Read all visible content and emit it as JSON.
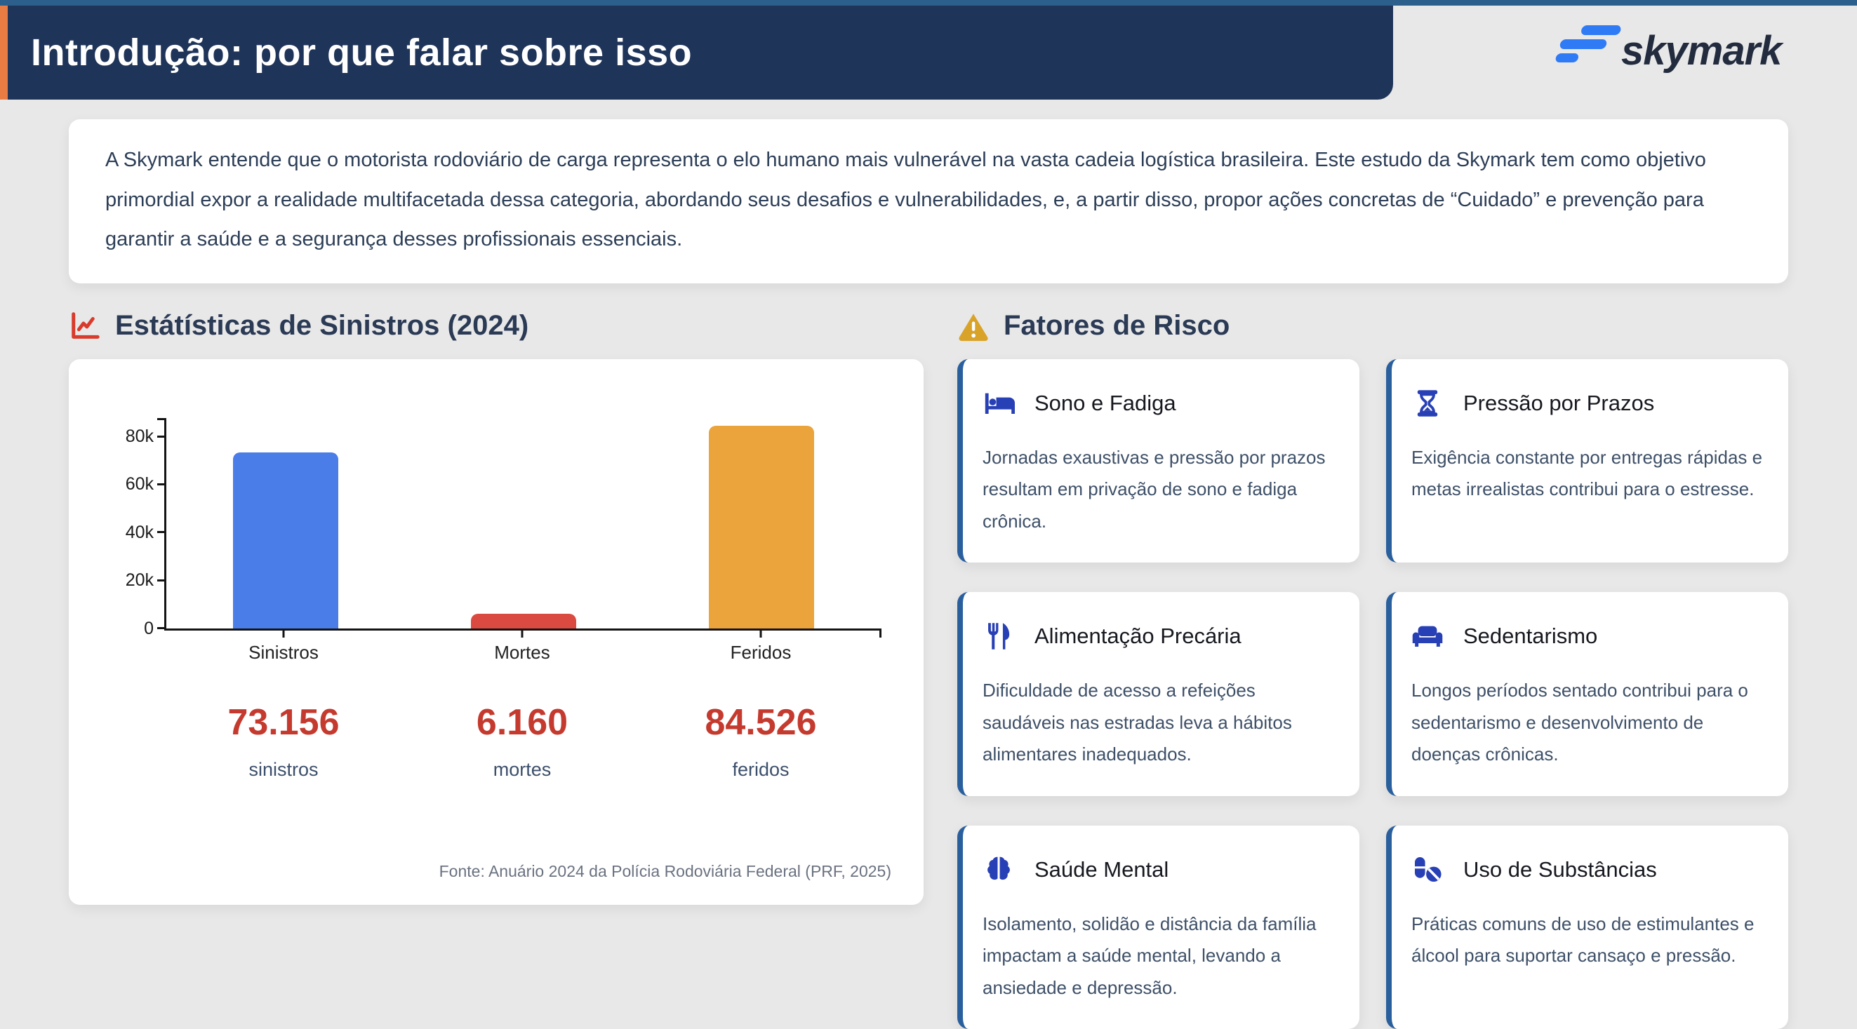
{
  "header": {
    "title": "Introdução: por que falar sobre isso",
    "logo_text": "skymark"
  },
  "intro": {
    "text": "A Skymark entende que o motorista rodoviário de carga representa o elo humano mais vulnerável na vasta cadeia logística brasileira. Este estudo da Skymark tem como objetivo primordial expor a realidade multifacetada dessa categoria, abordando seus desafios e vulnerabilidades, e, a partir disso, propor ações concretas de “Cuidado” e prevenção para garantir a saúde e a segurança desses profissionais essenciais."
  },
  "stats_section": {
    "title": "Estátísticas de Sinistros (2024)",
    "source": "Fonte: Anuário 2024 da Polícia Rodoviária Federal (PRF, 2025)",
    "totals": [
      {
        "value": "73.156",
        "label": "sinistros"
      },
      {
        "value": "6.160",
        "label": "mortes"
      },
      {
        "value": "84.526",
        "label": "feridos"
      }
    ]
  },
  "chart_data": {
    "type": "bar",
    "title": "Estátísticas de Sinistros (2024)",
    "categories": [
      "Sinistros",
      "Mortes",
      "Feridos"
    ],
    "values": [
      73156,
      6160,
      84526
    ],
    "colors": [
      "#4b7de8",
      "#db4a41",
      "#eba33b"
    ],
    "xlabel": "",
    "ylabel": "",
    "ylim": [
      0,
      88000
    ],
    "ytick_values": [
      0,
      20000,
      40000,
      60000,
      80000
    ],
    "ytick_labels": [
      "0",
      "20k",
      "40k",
      "60k",
      "80k"
    ],
    "grid": false,
    "legend": false
  },
  "risk_section": {
    "title": "Fatores de Risco",
    "cards": [
      {
        "icon": "bed-icon",
        "title": "Sono e Fadiga",
        "text": "Jornadas exaustivas e pressão por prazos resultam em privação de sono e fadiga crônica."
      },
      {
        "icon": "hourglass-icon",
        "title": "Pressão por Prazos",
        "text": "Exigência constante por entregas rápidas e metas irrealistas contribui para o estresse."
      },
      {
        "icon": "utensils-icon",
        "title": "Alimentação Precária",
        "text": "Dificuldade de acesso a refeições saudáveis nas estradas leva a hábitos alimentares inadequados."
      },
      {
        "icon": "couch-icon",
        "title": "Sedentarismo",
        "text": "Longos períodos sentado contribui para o sedentarismo e desenvolvimento de doenças crônicas."
      },
      {
        "icon": "brain-icon",
        "title": "Saúde Mental",
        "text": "Isolamento, solidão e distância da família impactam a saúde mental, levando a ansiedade e depressão."
      },
      {
        "icon": "pills-icon",
        "title": "Uso de Substâncias",
        "text": "Práticas comuns de uso de estimulantes e álcool para suportar cansaço e pressão."
      }
    ]
  },
  "colors": {
    "page_bg": "#e8e8e8",
    "top_strip": "#2d5f8d",
    "header_bg": "#1f3459",
    "accent_orange": "#e97c43",
    "logo_blue": "#2f7bf6",
    "logo_text_navy": "#232c3f",
    "stats_icon_red": "#d93a2b",
    "warning_amber": "#d9a32a",
    "stat_red": "#c53a2e",
    "icon_blue": "#2840b5",
    "card_border_blue": "#2a5f9e",
    "bar_blue": "#4b7de8",
    "bar_red": "#db4a41",
    "bar_orange": "#eba33b"
  }
}
